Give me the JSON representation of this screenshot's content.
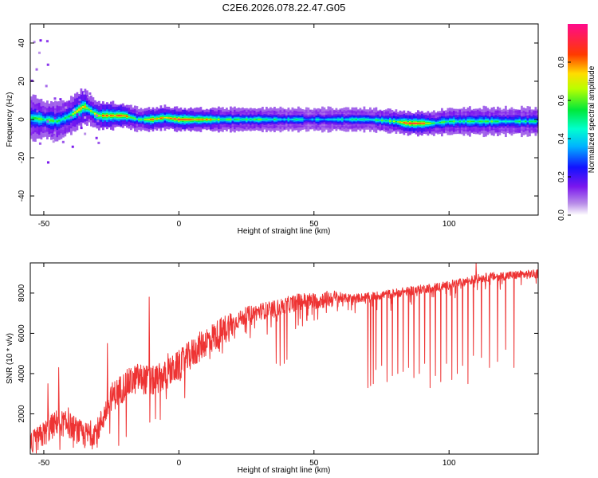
{
  "figure": {
    "title": "C2E6.2026.078.22.47.G05"
  },
  "chart_data": [
    {
      "type": "heatmap",
      "name": "spectrogram",
      "xlabel": "Height of straight line (km)",
      "ylabel": "Frequency (Hz)",
      "xlim": [
        -55,
        133
      ],
      "ylim": [
        -50,
        50
      ],
      "xticks": [
        -50,
        0,
        50,
        100
      ],
      "yticks": [
        -40,
        -20,
        0,
        20,
        40
      ],
      "colorbar": {
        "label": "Normalized spectral amplitude",
        "range": [
          0,
          1
        ],
        "ticks": [
          "0.0",
          "0.2",
          "0.4",
          "0.6",
          "0.8"
        ],
        "tick_values": [
          0.0,
          0.2,
          0.4,
          0.6,
          0.8
        ]
      },
      "ridge": {
        "x": [
          -55,
          -50,
          -45,
          -40,
          -37,
          -35,
          -33,
          -30,
          -25,
          -20,
          -15,
          -10,
          -5,
          0,
          10,
          20,
          30,
          40,
          50,
          60,
          70,
          80,
          85,
          90,
          94,
          100,
          110,
          120,
          133
        ],
        "center_hz": [
          1,
          0,
          -1,
          2,
          5,
          7,
          5,
          2,
          2,
          2,
          0,
          0,
          1,
          0,
          0,
          0,
          0,
          0,
          0,
          0,
          0,
          -1,
          -2,
          -2,
          -2,
          -1,
          -1,
          -1,
          -1
        ],
        "halfwidth_hz": [
          5,
          4,
          4,
          4,
          4,
          4,
          3,
          3,
          3,
          2.5,
          2.5,
          2.5,
          2.5,
          2.5,
          2.5,
          2.5,
          2.5,
          2.5,
          2.5,
          2.5,
          2.5,
          2.5,
          2.5,
          2.5,
          2.5,
          3,
          3,
          3,
          3
        ],
        "peak_amplitude": [
          0.45,
          0.55,
          0.5,
          0.6,
          0.65,
          0.7,
          0.65,
          0.7,
          0.85,
          0.8,
          0.5,
          0.8,
          0.7,
          0.9,
          0.8,
          0.5,
          0.55,
          0.45,
          0.4,
          0.45,
          0.5,
          0.6,
          0.9,
          0.95,
          0.55,
          0.5,
          0.55,
          0.5,
          0.45
        ]
      }
    },
    {
      "type": "line",
      "name": "snr",
      "xlabel": "Height of straight line (km)",
      "ylabel": "SNR (10 * v/v)",
      "xlim": [
        -55,
        133
      ],
      "ylim": [
        0,
        9500
      ],
      "xticks": [
        -50,
        0,
        50,
        100
      ],
      "yticks": [
        2000,
        4000,
        6000,
        8000
      ],
      "series": [
        {
          "name": "SNR",
          "color": "#ee3333",
          "trend": {
            "x": [
              -55,
              -50,
              -45,
              -40,
              -35,
              -30,
              -25,
              -20,
              -15,
              -10,
              -5,
              0,
              5,
              10,
              15,
              20,
              25,
              30,
              35,
              40,
              45,
              50,
              55,
              60,
              65,
              70,
              75,
              80,
              85,
              90,
              95,
              100,
              105,
              110,
              115,
              120,
              125,
              133
            ],
            "y": [
              400,
              1000,
              1600,
              1400,
              900,
              1200,
              2800,
              3400,
              3800,
              3600,
              3900,
              4400,
              5000,
              5600,
              6000,
              6500,
              6900,
              7100,
              7200,
              7400,
              7600,
              7600,
              7700,
              7750,
              7750,
              7800,
              7900,
              8000,
              8100,
              8200,
              8300,
              8400,
              8550,
              8700,
              8800,
              8850,
              8900,
              8950
            ]
          },
          "spikes": [
            {
              "x": -48.5,
              "y": 3500
            },
            {
              "x": -44.5,
              "y": 4300
            },
            {
              "x": -41,
              "y": 2300
            },
            {
              "x": -26.5,
              "y": 5500
            },
            {
              "x": -11,
              "y": 7800
            },
            {
              "x": -4,
              "y": 5000
            },
            {
              "x": 25,
              "y": 6000
            },
            {
              "x": 110,
              "y": 9500
            }
          ],
          "dips": [
            {
              "x": 36,
              "y": 4500
            },
            {
              "x": 37.5,
              "y": 4400
            },
            {
              "x": 39,
              "y": 4500
            },
            {
              "x": 40,
              "y": 4700
            },
            {
              "x": 70,
              "y": 3300
            },
            {
              "x": 71,
              "y": 3400
            },
            {
              "x": 72,
              "y": 3500
            },
            {
              "x": 73,
              "y": 4200
            },
            {
              "x": 75,
              "y": 4400
            },
            {
              "x": 77,
              "y": 3600
            },
            {
              "x": 79,
              "y": 3900
            },
            {
              "x": 81,
              "y": 4000
            },
            {
              "x": 83,
              "y": 4100
            },
            {
              "x": 85,
              "y": 4300
            },
            {
              "x": 87,
              "y": 3800
            },
            {
              "x": 89,
              "y": 4000
            },
            {
              "x": 91,
              "y": 4500
            },
            {
              "x": 93,
              "y": 3300
            },
            {
              "x": 95,
              "y": 3900
            },
            {
              "x": 97,
              "y": 3600
            },
            {
              "x": 99,
              "y": 4500
            },
            {
              "x": 101,
              "y": 3700
            },
            {
              "x": 103,
              "y": 4000
            },
            {
              "x": 105,
              "y": 4400
            },
            {
              "x": 107,
              "y": 3500
            },
            {
              "x": 109,
              "y": 4900
            },
            {
              "x": 112,
              "y": 4800
            },
            {
              "x": 115,
              "y": 4300
            },
            {
              "x": 118,
              "y": 4600
            },
            {
              "x": 121,
              "y": 5200
            },
            {
              "x": 124,
              "y": 4300
            }
          ]
        }
      ]
    }
  ]
}
